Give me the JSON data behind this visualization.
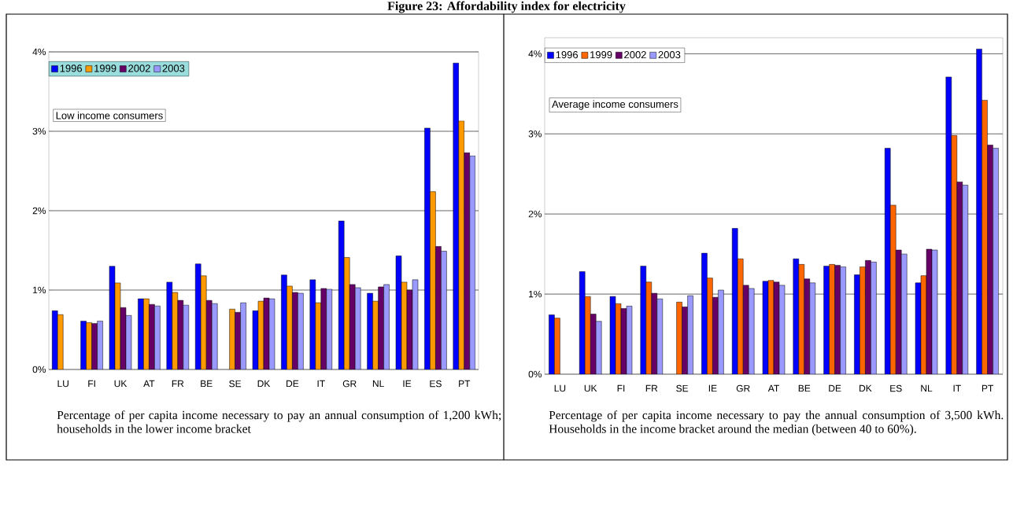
{
  "chart_data": [
    {
      "type": "bar",
      "title": "Figure 23: Affordability index for electricity",
      "categories": [
        "LU",
        "FI",
        "UK",
        "AT",
        "FR",
        "BE",
        "SE",
        "DK",
        "DE",
        "IT",
        "GR",
        "NL",
        "IE",
        "ES",
        "PT"
      ],
      "series": [
        {
          "name": "1996",
          "color": "#0000ff",
          "values": [
            0.74,
            0.61,
            1.3,
            0.89,
            1.1,
            1.33,
            null,
            0.74,
            1.19,
            1.13,
            1.87,
            0.96,
            1.43,
            3.04,
            3.86
          ]
        },
        {
          "name": "1999",
          "color": "#ff9900",
          "values": [
            0.69,
            0.59,
            1.09,
            0.89,
            0.97,
            1.18,
            0.76,
            0.86,
            1.05,
            0.84,
            1.41,
            0.86,
            1.1,
            2.24,
            3.13
          ]
        },
        {
          "name": "2002",
          "color": "#660066",
          "values": [
            null,
            0.58,
            0.78,
            0.82,
            0.87,
            0.87,
            0.72,
            0.9,
            0.97,
            1.02,
            1.07,
            1.04,
            1.0,
            1.55,
            2.73
          ]
        },
        {
          "name": "2003",
          "color": "#9999ff",
          "values": [
            null,
            0.61,
            0.68,
            0.8,
            0.81,
            0.83,
            0.84,
            0.89,
            0.96,
            1.01,
            1.03,
            1.07,
            1.13,
            1.49,
            2.69
          ]
        }
      ],
      "ylim": [
        0,
        4
      ],
      "yticks": [
        {
          "value": 0,
          "label": "0%"
        },
        {
          "value": 1,
          "label": "1%"
        },
        {
          "value": 2,
          "label": "2%"
        },
        {
          "value": 3,
          "label": "3%"
        },
        {
          "value": 4,
          "label": "4%"
        }
      ],
      "grid": "y",
      "legend": "top left",
      "annotations": [
        "Low income consumers",
        "Percentage of per capita income necessary to pay an annual consumption of 1,200 kWh; households in the lower income bracket"
      ]
    },
    {
      "type": "bar",
      "categories": [
        "LU",
        "UK",
        "FI",
        "FR",
        "SE",
        "IE",
        "GR",
        "AT",
        "BE",
        "DE",
        "DK",
        "ES",
        "NL",
        "IT",
        "PT"
      ],
      "series": [
        {
          "name": "1996",
          "color": "#0000ff",
          "values": [
            0.74,
            1.28,
            0.97,
            1.35,
            null,
            1.51,
            1.82,
            1.16,
            1.44,
            1.35,
            1.24,
            2.82,
            1.14,
            3.71,
            4.06
          ]
        },
        {
          "name": "1999",
          "color": "#ff6600",
          "values": [
            0.7,
            0.97,
            0.88,
            1.15,
            0.9,
            1.2,
            1.44,
            1.17,
            1.37,
            1.37,
            1.34,
            2.11,
            1.23,
            2.98,
            3.42
          ]
        },
        {
          "name": "2002",
          "color": "#660066",
          "values": [
            null,
            0.75,
            0.82,
            1.01,
            0.84,
            0.96,
            1.11,
            1.15,
            1.19,
            1.36,
            1.42,
            1.55,
            1.56,
            2.4,
            2.86
          ]
        },
        {
          "name": "2003",
          "color": "#9999ff",
          "values": [
            null,
            0.66,
            0.85,
            0.94,
            0.98,
            1.05,
            1.07,
            1.11,
            1.14,
            1.34,
            1.4,
            1.5,
            1.55,
            2.36,
            2.82
          ]
        }
      ],
      "ylim": [
        0,
        4.2
      ],
      "yticks": [
        {
          "value": 0,
          "label": "0%"
        },
        {
          "value": 1,
          "label": "1%"
        },
        {
          "value": 2,
          "label": "2%"
        },
        {
          "value": 3,
          "label": "3%"
        },
        {
          "value": 4,
          "label": "4%"
        }
      ],
      "grid": "y",
      "legend": "top left",
      "annotations": [
        "Average income consumers",
        "Percentage of per capita income necessary to pay the annual consumption of 3,500 kWh. Households in the income bracket around the median (between 40 to 60%)."
      ]
    }
  ]
}
